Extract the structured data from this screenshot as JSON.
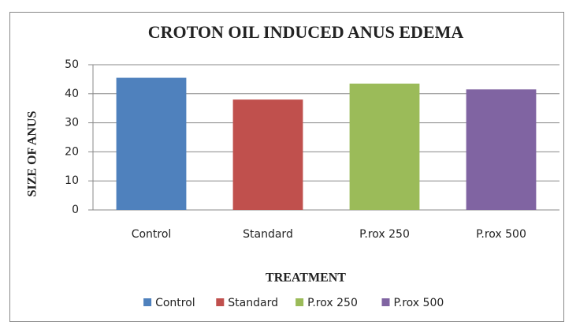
{
  "chart_data": {
    "type": "bar",
    "title": "CROTON OIL INDUCED ANUS EDEMA",
    "x_label": "TREATMENT",
    "y_label": "SIZE OF ANUS",
    "categories": [
      "Control",
      "Standard",
      "P.rox 250",
      "P.rox 500"
    ],
    "values": [
      45.5,
      38,
      43.5,
      41.5
    ],
    "colors": [
      "#4f81bd",
      "#c0504d",
      "#9bbb59",
      "#8064a2"
    ],
    "ylim": [
      0,
      50
    ],
    "yticks": [
      0,
      10,
      20,
      30,
      40,
      50
    ],
    "grid": true,
    "legend": "bottom"
  }
}
